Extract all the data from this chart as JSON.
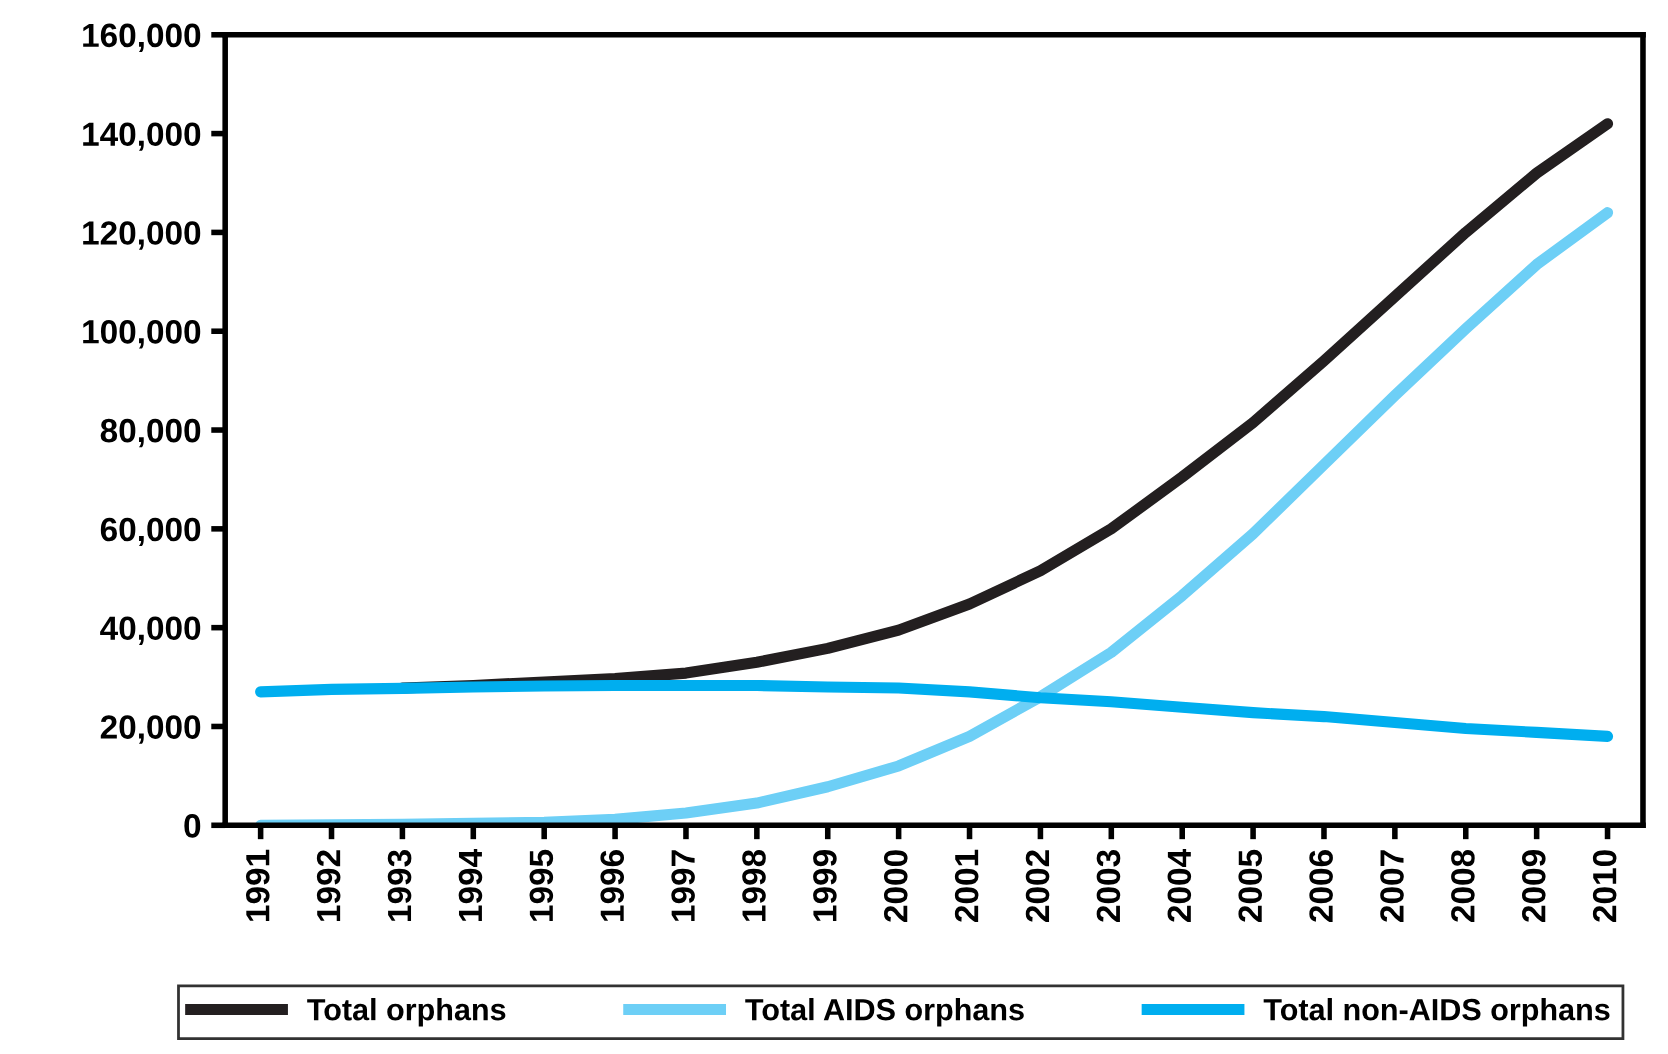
{
  "chart_data": {
    "type": "line",
    "categories": [
      "1991",
      "1992",
      "1993",
      "1994",
      "1995",
      "1996",
      "1997",
      "1998",
      "1999",
      "2000",
      "2001",
      "2002",
      "2003",
      "2004",
      "2005",
      "2006",
      "2007",
      "2008",
      "2009",
      "2010"
    ],
    "series": [
      {
        "name": "Total orphans",
        "color": "#231f20",
        "values": [
          null,
          null,
          27800,
          28300,
          29000,
          29700,
          30800,
          33000,
          35800,
          39500,
          44800,
          51500,
          60000,
          70500,
          81500,
          94000,
          107000,
          120000,
          132000,
          142000
        ]
      },
      {
        "name": "Total AIDS orphans",
        "color": "#6dcff6",
        "values": [
          0,
          100,
          200,
          400,
          600,
          1200,
          2500,
          4500,
          7800,
          12000,
          18000,
          26000,
          35000,
          46500,
          59000,
          73000,
          87000,
          100500,
          113500,
          124000
        ]
      },
      {
        "name": "Total non-AIDS orphans",
        "color": "#00aeef",
        "values": [
          27000,
          27500,
          27700,
          28000,
          28200,
          28300,
          28300,
          28300,
          28000,
          27800,
          27000,
          25800,
          25000,
          23900,
          22800,
          22000,
          20800,
          19600,
          18800,
          18000
        ]
      }
    ],
    "ylim": [
      0,
      160000
    ],
    "yticks": [
      {
        "value": 0,
        "label": "0"
      },
      {
        "value": 20000,
        "label": "20,000"
      },
      {
        "value": 40000,
        "label": "40,000"
      },
      {
        "value": 60000,
        "label": "60,000"
      },
      {
        "value": 80000,
        "label": "80,000"
      },
      {
        "value": 100000,
        "label": "100,000"
      },
      {
        "value": 120000,
        "label": "120,000"
      },
      {
        "value": 140000,
        "label": "140,000"
      },
      {
        "value": 160000,
        "label": "160,000"
      }
    ],
    "grid": false,
    "legend": "bottom",
    "marker": "none",
    "line_style": "solid"
  }
}
